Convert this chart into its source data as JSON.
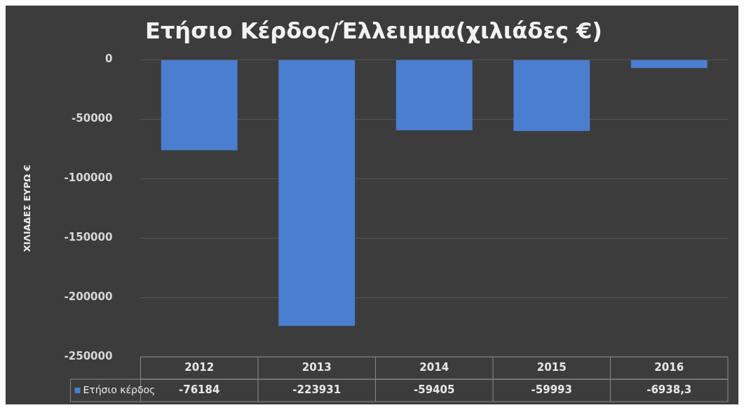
{
  "chart_data": {
    "type": "bar",
    "title": "Ετήσιο Κέρδος/Έλλειμμα(χιλιάδες €)",
    "ylabel": "ΧΙΛΙΑΔΕΣ ΕΥΡΩ €",
    "categories": [
      "2012",
      "2013",
      "2014",
      "2015",
      "2016"
    ],
    "series": [
      {
        "name": "Ετήσιο κέρδος",
        "color": "#4a7fd0",
        "values": [
          -76184,
          -223931,
          -59405,
          -59993,
          -6938.3
        ],
        "value_labels": [
          "-76184",
          "-223931",
          "-59405",
          "-59993",
          "-6938,3"
        ]
      }
    ],
    "ylim": [
      -250000,
      0
    ],
    "yticks": [
      0,
      -50000,
      -100000,
      -150000,
      -200000,
      -250000
    ],
    "grid": "y",
    "legend": "bottom"
  }
}
